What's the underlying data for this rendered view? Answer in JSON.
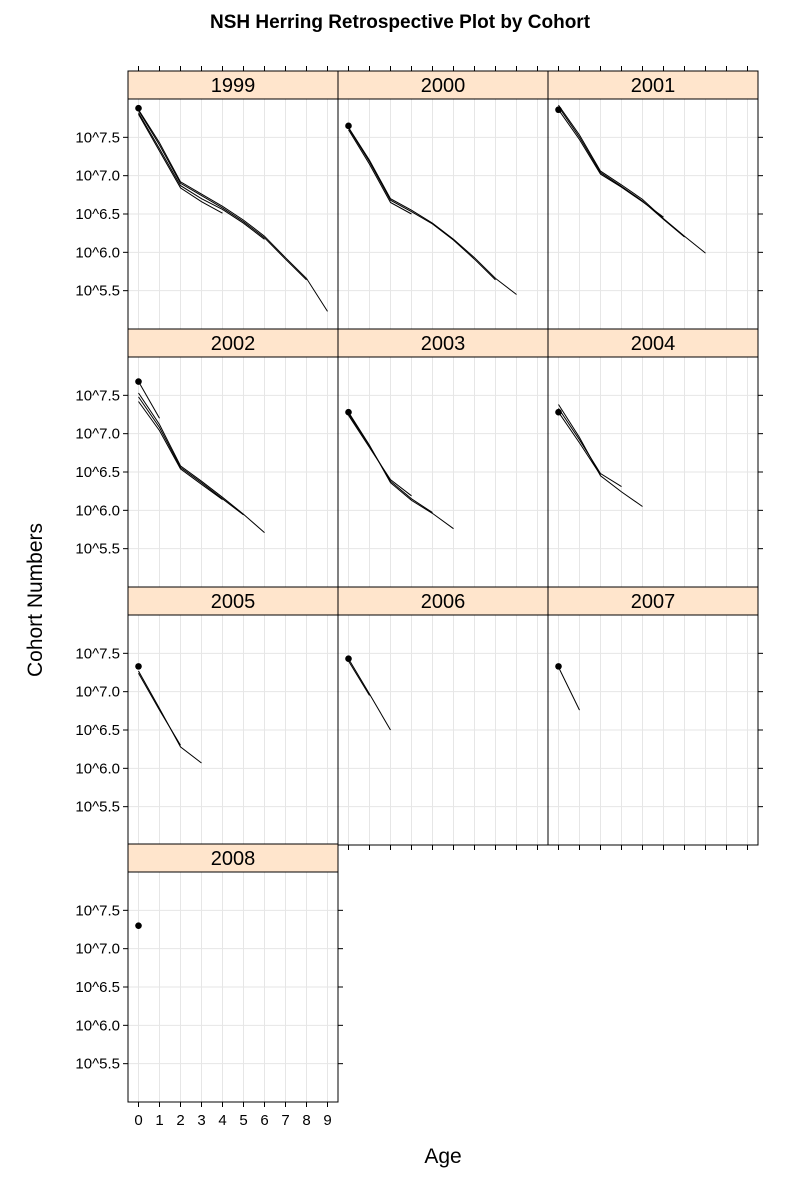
{
  "chart_data": {
    "type": "line",
    "title": "NSH Herring Retrospective Plot by Cohort",
    "xlabel": "Age",
    "ylabel": "Cohort Numbers",
    "xlim": [
      -0.5,
      9.5
    ],
    "ylim": [
      5.0,
      8.0
    ],
    "x_ticks": [
      0,
      1,
      2,
      3,
      4,
      5,
      6,
      7,
      8,
      9
    ],
    "y_ticks": [
      5.5,
      6.0,
      6.5,
      7.0,
      7.5
    ],
    "y_tick_labels": [
      "10^5.5",
      "10^6.0",
      "10^6.5",
      "10^7.0",
      "10^7.5"
    ],
    "y_scale": "log10",
    "grid": true,
    "layout": "3 columns x 4 rows",
    "panels": [
      {
        "cohort": "1999",
        "point": [
          0,
          7.88
        ],
        "lines": [
          {
            "x": [
              0,
              1,
              2,
              3,
              4,
              5,
              6,
              7,
              8,
              9
            ],
            "y": [
              7.86,
              7.43,
              6.92,
              6.76,
              6.6,
              6.42,
              6.21,
              5.93,
              5.66,
              5.23
            ]
          },
          {
            "x": [
              0,
              1,
              2,
              3,
              4,
              5,
              6,
              7,
              8
            ],
            "y": [
              7.85,
              7.4,
              6.9,
              6.74,
              6.58,
              6.4,
              6.19,
              5.91,
              5.64
            ]
          },
          {
            "x": [
              0,
              1,
              2,
              3,
              4,
              5,
              6
            ],
            "y": [
              7.82,
              7.35,
              6.87,
              6.7,
              6.56,
              6.38,
              6.17
            ]
          },
          {
            "x": [
              0,
              1,
              2,
              3,
              4
            ],
            "y": [
              7.8,
              7.32,
              6.84,
              6.66,
              6.51
            ]
          }
        ]
      },
      {
        "cohort": "2000",
        "point": [
          0,
          7.65
        ],
        "lines": [
          {
            "x": [
              0,
              1,
              2,
              3,
              4,
              5,
              6,
              7,
              8
            ],
            "y": [
              7.63,
              7.2,
              6.7,
              6.55,
              6.38,
              6.17,
              5.93,
              5.66,
              5.45
            ]
          },
          {
            "x": [
              0,
              1,
              2,
              3,
              4,
              5,
              6,
              7
            ],
            "y": [
              7.62,
              7.18,
              6.68,
              6.53,
              6.37,
              6.16,
              5.91,
              5.64
            ]
          },
          {
            "x": [
              0,
              1,
              2,
              3
            ],
            "y": [
              7.6,
              7.15,
              6.65,
              6.5
            ]
          }
        ]
      },
      {
        "cohort": "2001",
        "point": [
          0,
          7.86
        ],
        "lines": [
          {
            "x": [
              0,
              1,
              2,
              3,
              4,
              5,
              6,
              7
            ],
            "y": [
              7.92,
              7.53,
              7.06,
              6.88,
              6.69,
              6.44,
              6.21,
              5.99
            ]
          },
          {
            "x": [
              0,
              1,
              2,
              3,
              4,
              5,
              6
            ],
            "y": [
              7.9,
              7.5,
              7.04,
              6.86,
              6.67,
              6.43,
              6.2
            ]
          },
          {
            "x": [
              0,
              1,
              2,
              3,
              4,
              5
            ],
            "y": [
              7.86,
              7.47,
              7.02,
              6.85,
              6.66,
              6.46
            ]
          }
        ]
      },
      {
        "cohort": "2002",
        "point": [
          0,
          7.68
        ],
        "lines": [
          {
            "x": [
              0,
              1,
              2,
              3,
              4,
              5,
              6
            ],
            "y": [
              7.53,
              7.12,
              6.58,
              6.38,
              6.17,
              5.95,
              5.71
            ]
          },
          {
            "x": [
              0,
              1,
              2,
              3,
              4,
              5
            ],
            "y": [
              7.48,
              7.08,
              6.56,
              6.36,
              6.15,
              5.94
            ]
          },
          {
            "x": [
              0,
              1,
              2,
              3,
              4
            ],
            "y": [
              7.42,
              7.04,
              6.54,
              6.34,
              6.14
            ]
          },
          {
            "x": [
              0,
              1
            ],
            "y": [
              7.68,
              7.2
            ]
          }
        ]
      },
      {
        "cohort": "2003",
        "point": [
          0,
          7.28
        ],
        "lines": [
          {
            "x": [
              0,
              1,
              2,
              3,
              4,
              5
            ],
            "y": [
              7.28,
              6.85,
              6.36,
              6.13,
              5.96,
              5.76
            ]
          },
          {
            "x": [
              0,
              1,
              2,
              3,
              4
            ],
            "y": [
              7.26,
              6.84,
              6.38,
              6.15,
              5.97
            ]
          },
          {
            "x": [
              0,
              1,
              2,
              3
            ],
            "y": [
              7.24,
              6.82,
              6.4,
              6.19
            ]
          }
        ]
      },
      {
        "cohort": "2004",
        "point": [
          0,
          7.28
        ],
        "lines": [
          {
            "x": [
              0,
              1,
              2,
              3,
              4
            ],
            "y": [
              7.38,
              6.95,
              6.45,
              6.24,
              6.05
            ]
          },
          {
            "x": [
              0,
              1,
              2,
              3
            ],
            "y": [
              7.33,
              6.92,
              6.48,
              6.31
            ]
          },
          {
            "x": [
              0,
              1,
              2
            ],
            "y": [
              7.28,
              6.88,
              6.46
            ]
          }
        ]
      },
      {
        "cohort": "2005",
        "point": [
          0,
          7.33
        ],
        "lines": [
          {
            "x": [
              0,
              1,
              2,
              3
            ],
            "y": [
              7.27,
              6.78,
              6.28,
              6.07
            ]
          },
          {
            "x": [
              0,
              1,
              2
            ],
            "y": [
              7.24,
              6.76,
              6.3
            ]
          }
        ]
      },
      {
        "cohort": "2006",
        "point": [
          0,
          7.43
        ],
        "lines": [
          {
            "x": [
              0,
              1,
              2
            ],
            "y": [
              7.43,
              6.97,
              6.5
            ]
          },
          {
            "x": [
              0,
              1
            ],
            "y": [
              7.4,
              6.95
            ]
          }
        ]
      },
      {
        "cohort": "2007",
        "point": [
          0,
          7.33
        ],
        "lines": [
          {
            "x": [
              0,
              1
            ],
            "y": [
              7.32,
              6.76
            ]
          }
        ]
      },
      {
        "cohort": "2008",
        "point": [
          0,
          7.3
        ],
        "lines": []
      }
    ]
  }
}
